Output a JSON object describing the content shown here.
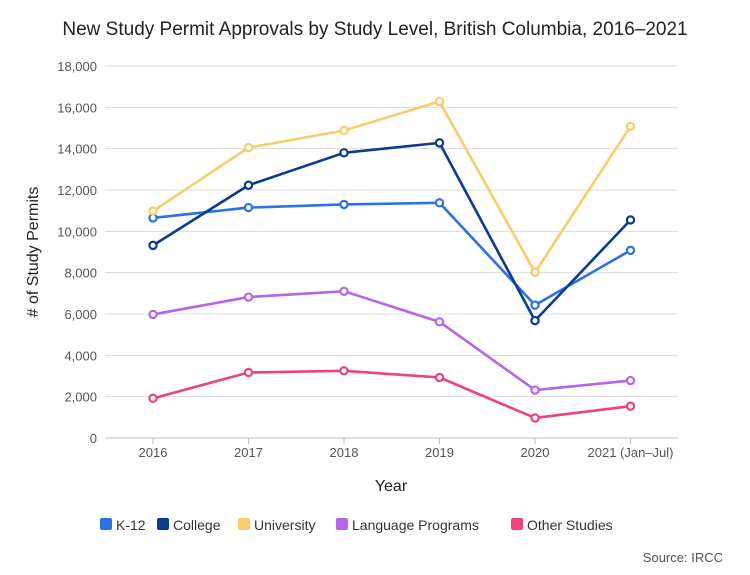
{
  "chart_data": {
    "type": "line",
    "title": "New Study Permit Approvals by Study Level, British Columbia, 2016–2021",
    "xlabel": "Year",
    "ylabel": "# of Study Permits",
    "categories": [
      "2016",
      "2017",
      "2018",
      "2019",
      "2020",
      "2021 (Jan–Jul)"
    ],
    "ylim": [
      0,
      18000
    ],
    "yticks": [
      0,
      2000,
      4000,
      6000,
      8000,
      10000,
      12000,
      14000,
      16000,
      18000
    ],
    "ytick_labels": [
      "0",
      "2,000",
      "4,000",
      "6,000",
      "8,000",
      "10,000",
      "12,000",
      "14,000",
      "16,000",
      "18,000"
    ],
    "grid": true,
    "legend_position": "bottom",
    "series": [
      {
        "name": "K-12",
        "color": "#2d72e0",
        "values": [
          10650,
          11150,
          11300,
          11380,
          6430,
          9080
        ]
      },
      {
        "name": "College",
        "color": "#0b3b91",
        "values": [
          9320,
          12230,
          13800,
          14280,
          5680,
          10550
        ]
      },
      {
        "name": "University",
        "color": "#f7cc6a",
        "values": [
          10980,
          14050,
          14880,
          16280,
          8020,
          15080
        ]
      },
      {
        "name": "Language Programs",
        "color": "#b566e8",
        "values": [
          5980,
          6820,
          7100,
          5620,
          2320,
          2780
        ]
      },
      {
        "name": "Other Studies",
        "color": "#ee4377",
        "values": [
          1920,
          3170,
          3250,
          2930,
          970,
          1540
        ]
      }
    ]
  },
  "source": "Source: IRCC"
}
